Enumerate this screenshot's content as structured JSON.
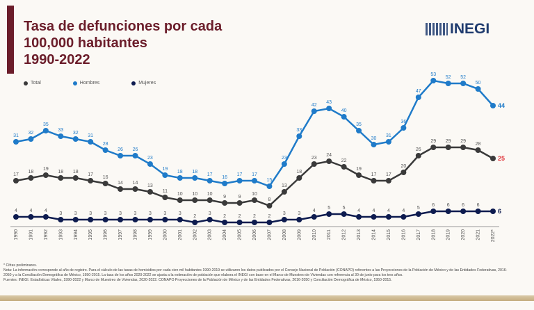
{
  "header": {
    "title": "Tasa de defunciones por cada\n100,000 habitantes\n1990-2022",
    "logo": "INEGI"
  },
  "notes": {
    "preliminary": "* Cifras preliminares.",
    "note": "Nota: La información corresponde al año de registro. Para el cálculo de las tasas de homicidios por cada cien mil habitantes 1990-2019 se utilizaron los datos publicados por el Consejo Nacional de Población (CONAPO) referentes a las Proyecciones de la Población de México y de las Entidades Federativas, 2016-2050 y a la Conciliación Demográfica de México, 1950-2015. La tasa de los años 2020-2022 se ajusta a la estimación de población que elabora el INEGI con base en el Marco de Muestreo de Viviendas con referencia al 30 de junio para los tres años.",
    "sources": "Fuentes: INEGI. Estadísticas Vitales, 1990-2022 y Marco de Muestreo de Viviendas, 2020-2022. CONAPO Proyecciones de la Población de México y de las Entidades Federativas, 2016-2050 y Conciliación Demográfica de México, 1950-2015."
  },
  "chart_data": {
    "type": "line",
    "title": "Tasa de defunciones por cada 100,000 habitantes 1990-2022",
    "legend": "top-left",
    "grid": false,
    "categories": [
      "1990",
      "1991",
      "1992",
      "1993",
      "1994",
      "1995",
      "1996",
      "1997",
      "1998",
      "1999",
      "2000",
      "2001",
      "2002",
      "2003",
      "2004",
      "2005",
      "2006",
      "2007",
      "2008",
      "2009",
      "2010",
      "2011",
      "2012",
      "2013",
      "2014",
      "2015",
      "2016",
      "2017",
      "2018",
      "2019",
      "2020",
      "2021",
      "2022*"
    ],
    "series": [
      {
        "name": "Total",
        "color": "#3a3a3a",
        "last_label_color": "#e0393e",
        "values": [
          17,
          18,
          19,
          18,
          18,
          17,
          16,
          14,
          14,
          13,
          11,
          10,
          10,
          10,
          9,
          9,
          10,
          8,
          13,
          18,
          23,
          24,
          22,
          19,
          17,
          17,
          20,
          26,
          29,
          29,
          29,
          28,
          25
        ]
      },
      {
        "name": "Hombres",
        "color": "#1f7bc9",
        "values": [
          31,
          32,
          35,
          33,
          32,
          31,
          28,
          26,
          26,
          23,
          19,
          18,
          18,
          17,
          16,
          17,
          17,
          15,
          23,
          33,
          42,
          43,
          40,
          35,
          30,
          31,
          36,
          47,
          53,
          52,
          52,
          50,
          44
        ]
      },
      {
        "name": "Mujeres",
        "color": "#0d1b4f",
        "values": [
          4,
          4,
          4,
          3,
          3,
          3,
          3,
          3,
          3,
          3,
          3,
          3,
          2,
          3,
          2,
          2,
          2,
          2,
          3,
          3,
          4,
          5,
          5,
          4,
          4,
          4,
          4,
          5,
          6,
          6,
          6,
          6,
          6
        ]
      }
    ]
  }
}
